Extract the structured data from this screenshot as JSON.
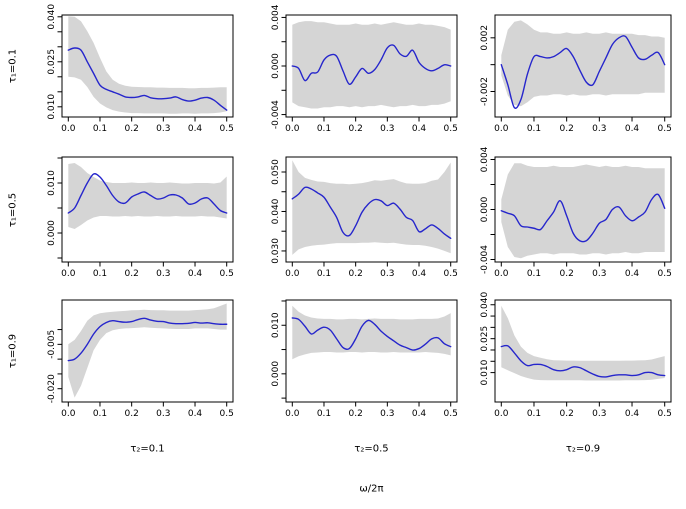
{
  "figure": {
    "background": "#ffffff",
    "band_color": "#d5d5d5",
    "line_color": "#2626cc",
    "axis_color": "#000000",
    "text_color": "#000000",
    "xlabel": "ω/2π",
    "row_labels": [
      "τ₁=0.1",
      "τ₁=0.5",
      "τ₁=0.9"
    ],
    "col_labels": [
      "τ₂=0.1",
      "τ₂=0.5",
      "τ₂=0.9"
    ]
  },
  "chart_data": {
    "type": "line",
    "layout": "3x3-grid",
    "note": "Estimated spectra (blue line) with gray pointwise confidence bands",
    "xlabel": "ω/2π",
    "x_start": 0,
    "x_step": 0.02,
    "x_end": 0.5,
    "x_tick_values": [
      0.0,
      0.1,
      0.2,
      0.3,
      0.4,
      0.5
    ],
    "x_tick_labels": [
      "0.0",
      "0.1",
      "0.2",
      "0.3",
      "0.4",
      "0.5"
    ],
    "grid": false,
    "legend": "none",
    "panels": [
      {
        "id": "r1c1",
        "row": 0,
        "col": 0,
        "tau1": 0.1,
        "tau2": 0.1,
        "ylim": [
          0.0066,
          0.0406
        ],
        "ytick_values": [
          0.01,
          0.015,
          0.02,
          0.025,
          0.03,
          0.035,
          0.04
        ],
        "ytick_labels": [
          "0.010",
          "",
          "",
          "0.025",
          "",
          "",
          "0.040"
        ],
        "line": [
          0.0289,
          0.0296,
          0.0289,
          0.025,
          0.0211,
          0.0172,
          0.0158,
          0.015,
          0.0142,
          0.0133,
          0.0131,
          0.0133,
          0.0138,
          0.013,
          0.0127,
          0.0127,
          0.0129,
          0.0133,
          0.0124,
          0.0119,
          0.0122,
          0.0129,
          0.0131,
          0.0122,
          0.0105,
          0.0089
        ],
        "band_upper": [
          0.0402,
          0.04,
          0.0385,
          0.0352,
          0.0313,
          0.0263,
          0.0218,
          0.019,
          0.0177,
          0.017,
          0.0167,
          0.0166,
          0.0165,
          0.0165,
          0.0164,
          0.0164,
          0.0163,
          0.0163,
          0.0163,
          0.0162,
          0.0162,
          0.0163,
          0.0163,
          0.0164,
          0.0165,
          0.0165
        ],
        "band_lower": [
          0.02,
          0.0198,
          0.019,
          0.0166,
          0.0133,
          0.0111,
          0.0098,
          0.0089,
          0.0084,
          0.0081,
          0.0079,
          0.0079,
          0.0078,
          0.0078,
          0.0078,
          0.0078,
          0.0077,
          0.0077,
          0.0078,
          0.0078,
          0.0077,
          0.0078,
          0.0078,
          0.0079,
          0.0081,
          0.0085
        ]
      },
      {
        "id": "r1c2",
        "row": 0,
        "col": 1,
        "tau1": 0.1,
        "tau2": 0.5,
        "ylim": [
          -0.0042,
          0.0042
        ],
        "ytick_values": [
          -0.004,
          -0.002,
          0.0,
          0.002,
          0.004
        ],
        "ytick_labels": [
          "-0.004",
          "",
          "0.000",
          "",
          "0.004"
        ],
        "line": [
          0.0,
          -0.0002,
          -0.0012,
          -0.0006,
          -0.0005,
          0.0005,
          0.0009,
          0.0008,
          -0.0004,
          -0.0015,
          -0.0009,
          -0.0002,
          -0.0006,
          -0.0003,
          0.0005,
          0.0015,
          0.0017,
          0.001,
          0.0008,
          0.0013,
          0.0003,
          -0.0002,
          -0.0004,
          -0.0002,
          0.0001,
          0.0
        ],
        "band_upper": [
          0.0034,
          0.0036,
          0.0037,
          0.0037,
          0.0036,
          0.0036,
          0.0035,
          0.0034,
          0.0034,
          0.0034,
          0.0035,
          0.0034,
          0.0034,
          0.0035,
          0.0034,
          0.0035,
          0.0036,
          0.0035,
          0.0034,
          0.0034,
          0.0035,
          0.0034,
          0.0034,
          0.0033,
          0.0032,
          0.003
        ],
        "band_lower": [
          -0.003,
          -0.0033,
          -0.0034,
          -0.0035,
          -0.0035,
          -0.0034,
          -0.0034,
          -0.0033,
          -0.0033,
          -0.0034,
          -0.0033,
          -0.0034,
          -0.0033,
          -0.0033,
          -0.0032,
          -0.0033,
          -0.0034,
          -0.0033,
          -0.0033,
          -0.0032,
          -0.0033,
          -0.0033,
          -0.0032,
          -0.0032,
          -0.0031,
          -0.0029
        ]
      },
      {
        "id": "r1c3",
        "row": 0,
        "col": 2,
        "tau1": 0.1,
        "tau2": 0.9,
        "ylim": [
          -0.0039,
          0.0037
        ],
        "ytick_values": [
          -0.002,
          0.0,
          0.002
        ],
        "ytick_labels": [
          "-0.002",
          "",
          "0.002"
        ],
        "line": [
          0.0,
          -0.0015,
          -0.0032,
          -0.0026,
          -0.0007,
          0.0006,
          0.0006,
          0.0005,
          0.0006,
          0.0009,
          0.0012,
          0.0006,
          -0.0004,
          -0.0013,
          -0.0015,
          -0.0005,
          0.0005,
          0.0015,
          0.002,
          0.0021,
          0.0013,
          0.0005,
          0.0004,
          0.0007,
          0.0009,
          0.0
        ],
        "band_upper": [
          0.0007,
          0.0026,
          0.0032,
          0.0033,
          0.003,
          0.0026,
          0.0024,
          0.0024,
          0.0023,
          0.0023,
          0.0024,
          0.0023,
          0.0023,
          0.0024,
          0.0023,
          0.0023,
          0.0024,
          0.0023,
          0.0023,
          0.0023,
          0.0023,
          0.0022,
          0.0022,
          0.0021,
          0.0021,
          0.002
        ],
        "band_lower": [
          -0.0008,
          -0.0023,
          -0.003,
          -0.0031,
          -0.0028,
          -0.0024,
          -0.0023,
          -0.0023,
          -0.0022,
          -0.0022,
          -0.0023,
          -0.0022,
          -0.0023,
          -0.0023,
          -0.0022,
          -0.0022,
          -0.0023,
          -0.0022,
          -0.0022,
          -0.0022,
          -0.0022,
          -0.0022,
          -0.0021,
          -0.0021,
          -0.0021,
          -0.0021
        ]
      },
      {
        "id": "r2c1",
        "row": 1,
        "col": 0,
        "tau1": 0.5,
        "tau2": 0.1,
        "ylim": [
          -0.0058,
          0.0152
        ],
        "ytick_values": [
          -0.005,
          0.0,
          0.005,
          0.01,
          0.015
        ],
        "ytick_labels": [
          "",
          "0.000",
          "",
          "0.010",
          ""
        ],
        "line": [
          0.004,
          0.005,
          0.0075,
          0.01,
          0.0118,
          0.0112,
          0.0095,
          0.0075,
          0.0062,
          0.006,
          0.0072,
          0.0078,
          0.0082,
          0.0075,
          0.0068,
          0.007,
          0.0076,
          0.0076,
          0.007,
          0.0058,
          0.006,
          0.0068,
          0.007,
          0.0058,
          0.0045,
          0.004
        ],
        "band_upper": [
          0.0138,
          0.014,
          0.0132,
          0.012,
          0.0112,
          0.0105,
          0.0102,
          0.01,
          0.01,
          0.01,
          0.0101,
          0.01,
          0.01,
          0.0101,
          0.01,
          0.01,
          0.0101,
          0.01,
          0.0099,
          0.0099,
          0.01,
          0.01,
          0.01,
          0.0099,
          0.0101,
          0.0113
        ],
        "band_lower": [
          0.0012,
          0.0008,
          0.0016,
          0.0025,
          0.0031,
          0.0034,
          0.0034,
          0.0033,
          0.0033,
          0.0034,
          0.0033,
          0.0034,
          0.0033,
          0.0033,
          0.0034,
          0.0033,
          0.0033,
          0.0034,
          0.0033,
          0.0033,
          0.0033,
          0.0034,
          0.0033,
          0.0033,
          0.0031,
          0.0029
        ]
      },
      {
        "id": "r2c2",
        "row": 1,
        "col": 1,
        "tau1": 0.5,
        "tau2": 0.5,
        "ylim": [
          0.0272,
          0.0538
        ],
        "ytick_values": [
          0.03,
          0.035,
          0.04,
          0.045,
          0.05
        ],
        "ytick_labels": [
          "0.030",
          "",
          "0.040",
          "",
          "0.050"
        ],
        "line": [
          0.0432,
          0.0444,
          0.0461,
          0.0457,
          0.0447,
          0.0436,
          0.0411,
          0.0385,
          0.0347,
          0.0339,
          0.0364,
          0.0398,
          0.0419,
          0.043,
          0.0427,
          0.0415,
          0.0421,
          0.0406,
          0.0385,
          0.0377,
          0.0349,
          0.0356,
          0.0366,
          0.0357,
          0.0343,
          0.0332
        ],
        "band_upper": [
          0.053,
          0.05,
          0.0485,
          0.048,
          0.0476,
          0.0475,
          0.0472,
          0.047,
          0.047,
          0.0469,
          0.047,
          0.0472,
          0.0475,
          0.0479,
          0.0478,
          0.048,
          0.0482,
          0.0476,
          0.0471,
          0.047,
          0.047,
          0.0472,
          0.0478,
          0.0481,
          0.05,
          0.0524
        ],
        "band_lower": [
          0.029,
          0.0304,
          0.031,
          0.0313,
          0.0315,
          0.0316,
          0.0318,
          0.032,
          0.032,
          0.032,
          0.032,
          0.0321,
          0.0321,
          0.0322,
          0.0321,
          0.032,
          0.0321,
          0.0318,
          0.0316,
          0.0315,
          0.0315,
          0.0313,
          0.031,
          0.0306,
          0.03,
          0.0294
        ]
      },
      {
        "id": "r2c3",
        "row": 1,
        "col": 2,
        "tau1": 0.5,
        "tau2": 0.9,
        "ylim": [
          -0.0042,
          0.0042
        ],
        "ytick_values": [
          -0.004,
          -0.002,
          0.0,
          0.002,
          0.004
        ],
        "ytick_labels": [
          "-0.004",
          "",
          "0.000",
          "",
          "0.004"
        ],
        "line": [
          -0.0001,
          -0.0003,
          -0.0005,
          -0.0013,
          -0.0014,
          -0.0015,
          -0.0016,
          -0.0009,
          -0.0002,
          0.0007,
          -0.0005,
          -0.0019,
          -0.0025,
          -0.0025,
          -0.0019,
          -0.0011,
          -0.0008,
          0.0,
          0.0002,
          -0.0005,
          -0.0009,
          -0.0006,
          -0.0002,
          0.0008,
          0.0012,
          0.0001
        ],
        "band_upper": [
          0.0008,
          0.0028,
          0.0037,
          0.0037,
          0.0035,
          0.0034,
          0.0034,
          0.0034,
          0.0035,
          0.0034,
          0.0034,
          0.0034,
          0.0035,
          0.0036,
          0.0035,
          0.0034,
          0.0035,
          0.0034,
          0.0034,
          0.0035,
          0.0034,
          0.0034,
          0.0033,
          0.0033,
          0.0033,
          0.0033
        ],
        "band_lower": [
          -0.001,
          -0.003,
          -0.0038,
          -0.0039,
          -0.0037,
          -0.0036,
          -0.0035,
          -0.0035,
          -0.0036,
          -0.0035,
          -0.0035,
          -0.0035,
          -0.0036,
          -0.0036,
          -0.0035,
          -0.0035,
          -0.0036,
          -0.0035,
          -0.0035,
          -0.0034,
          -0.0035,
          -0.0035,
          -0.0034,
          -0.0034,
          -0.0034,
          -0.0034
        ]
      },
      {
        "id": "r3c1",
        "row": 2,
        "col": 0,
        "tau1": 0.9,
        "tau2": 0.1,
        "ylim": [
          -0.0245,
          0.01
        ],
        "ytick_values": [
          -0.02,
          -0.015,
          -0.01,
          -0.005,
          0.0
        ],
        "ytick_labels": [
          "-0.020",
          "",
          "",
          "-0.005",
          ""
        ],
        "line": [
          -0.0105,
          -0.01,
          -0.008,
          -0.005,
          -0.0015,
          0.001,
          0.0024,
          0.003,
          0.0027,
          0.0025,
          0.0027,
          0.0034,
          0.0038,
          0.0032,
          0.0028,
          0.0027,
          0.0022,
          0.002,
          0.002,
          0.0021,
          0.0024,
          0.0022,
          0.0023,
          0.002,
          0.0018,
          0.0018
        ],
        "band_upper": [
          -0.005,
          -0.0035,
          -0.0005,
          0.003,
          0.0048,
          0.0055,
          0.0058,
          0.006,
          0.0062,
          0.0063,
          0.0065,
          0.0066,
          0.0067,
          0.0066,
          0.0065,
          0.0065,
          0.0064,
          0.0064,
          0.0064,
          0.0064,
          0.0066,
          0.0067,
          0.0069,
          0.0072,
          0.008,
          0.0088
        ],
        "band_lower": [
          -0.016,
          -0.023,
          -0.019,
          -0.013,
          -0.007,
          -0.0035,
          -0.0012,
          -0.0002,
          0.0002,
          0.0004,
          0.0005,
          0.0006,
          0.0008,
          0.0006,
          0.0005,
          0.0004,
          0.0003,
          0.0002,
          0.0002,
          0.0002,
          0.0004,
          0.0004,
          0.0004,
          0.0002,
          0.0,
          0.0
        ]
      },
      {
        "id": "r3c2",
        "row": 2,
        "col": 1,
        "tau1": 0.9,
        "tau2": 0.5,
        "ylim": [
          -0.0058,
          0.0152
        ],
        "ytick_values": [
          -0.005,
          0.0,
          0.005,
          0.01,
          0.015
        ],
        "ytick_labels": [
          "",
          "0.000",
          "",
          "0.010",
          ""
        ],
        "line": [
          0.0115,
          0.0112,
          0.0098,
          0.0082,
          0.009,
          0.0096,
          0.009,
          0.0072,
          0.0054,
          0.0052,
          0.0072,
          0.0098,
          0.011,
          0.0102,
          0.0088,
          0.0077,
          0.0068,
          0.0059,
          0.0054,
          0.0049,
          0.0052,
          0.0061,
          0.0072,
          0.0074,
          0.0062,
          0.0056
        ],
        "band_upper": [
          0.014,
          0.0128,
          0.012,
          0.0116,
          0.0114,
          0.0113,
          0.0113,
          0.0112,
          0.0112,
          0.0113,
          0.0113,
          0.0112,
          0.0113,
          0.0114,
          0.0113,
          0.0113,
          0.0113,
          0.0112,
          0.0112,
          0.0112,
          0.0113,
          0.0113,
          0.0113,
          0.0114,
          0.0118,
          0.0125
        ],
        "band_lower": [
          0.003,
          0.0036,
          0.004,
          0.0043,
          0.0044,
          0.0045,
          0.0045,
          0.0044,
          0.0044,
          0.0045,
          0.0045,
          0.0044,
          0.0045,
          0.0045,
          0.0044,
          0.0044,
          0.0045,
          0.0044,
          0.0044,
          0.0044,
          0.0044,
          0.0045,
          0.0044,
          0.0043,
          0.0041,
          0.0038
        ]
      },
      {
        "id": "r3c3",
        "row": 2,
        "col": 2,
        "tau1": 0.9,
        "tau2": 0.9,
        "ylim": [
          -0.003,
          0.0421
        ],
        "ytick_values": [
          0.01,
          0.015,
          0.02,
          0.025,
          0.03,
          0.035,
          0.04
        ],
        "ytick_labels": [
          "0.010",
          "",
          "",
          "0.025",
          "",
          "",
          "0.040"
        ],
        "line": [
          0.0215,
          0.0218,
          0.0187,
          0.0152,
          0.0131,
          0.0136,
          0.0136,
          0.0127,
          0.0113,
          0.0108,
          0.0113,
          0.0125,
          0.0122,
          0.0108,
          0.0094,
          0.0083,
          0.0081,
          0.0087,
          0.009,
          0.009,
          0.0087,
          0.009,
          0.01,
          0.01,
          0.009,
          0.0087
        ],
        "band_upper": [
          0.0396,
          0.0341,
          0.0264,
          0.0215,
          0.0187,
          0.0173,
          0.0166,
          0.0159,
          0.0155,
          0.0154,
          0.0153,
          0.0153,
          0.0152,
          0.0152,
          0.0152,
          0.0152,
          0.0152,
          0.0152,
          0.0152,
          0.0153,
          0.0153,
          0.0154,
          0.0155,
          0.0158,
          0.0166,
          0.0173
        ],
        "band_lower": [
          0.0124,
          0.011,
          0.0098,
          0.0085,
          0.0076,
          0.0069,
          0.0067,
          0.0066,
          0.0066,
          0.0066,
          0.0066,
          0.0066,
          0.0066,
          0.0065,
          0.0065,
          0.0065,
          0.0065,
          0.0065,
          0.0065,
          0.0066,
          0.0066,
          0.0066,
          0.0067,
          0.0068,
          0.0072,
          0.0076
        ]
      }
    ]
  }
}
